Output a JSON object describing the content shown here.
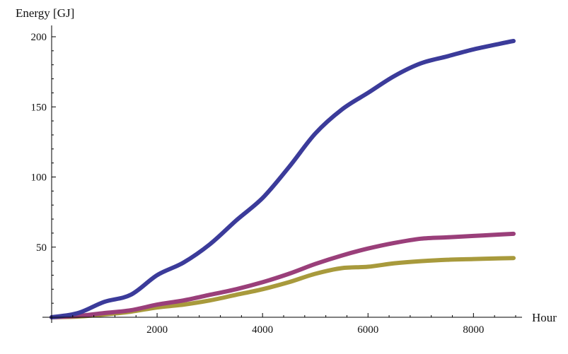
{
  "chart_data": {
    "type": "line",
    "title": "",
    "xlabel": "Hour",
    "ylabel": "Energy [GJ]",
    "xlim": [
      0,
      8760
    ],
    "ylim": [
      0,
      200
    ],
    "x_ticks": [
      2000,
      4000,
      6000,
      8000
    ],
    "y_ticks": [
      50,
      100,
      150,
      200
    ],
    "x_tick_labels": [
      "2000",
      "4000",
      "6000",
      "8000"
    ],
    "y_tick_labels": [
      "50",
      "100",
      "150",
      "200"
    ],
    "grid": false,
    "legend": "none",
    "x": [
      0,
      500,
      1000,
      1500,
      2000,
      2500,
      3000,
      3500,
      4000,
      4500,
      5000,
      5500,
      6000,
      6500,
      7000,
      7500,
      8000,
      8500,
      8760
    ],
    "series": [
      {
        "color": "#3b3b9a",
        "values": [
          0,
          3,
          11,
          16,
          30,
          39,
          52,
          69,
          85,
          107,
          131,
          148,
          160,
          172,
          181,
          186,
          191,
          195,
          197
        ]
      },
      {
        "color": "#9a3f7a",
        "values": [
          0,
          1,
          3,
          5,
          9,
          12,
          16,
          20,
          25,
          31,
          38,
          44,
          49,
          53,
          56,
          57,
          58,
          59,
          59.5
        ]
      },
      {
        "color": "#a89a3c",
        "values": [
          0,
          0.5,
          2,
          4,
          7,
          9,
          12,
          16,
          20,
          25,
          31,
          35,
          36,
          38.5,
          40,
          41,
          41.5,
          42,
          42.2
        ]
      }
    ]
  }
}
